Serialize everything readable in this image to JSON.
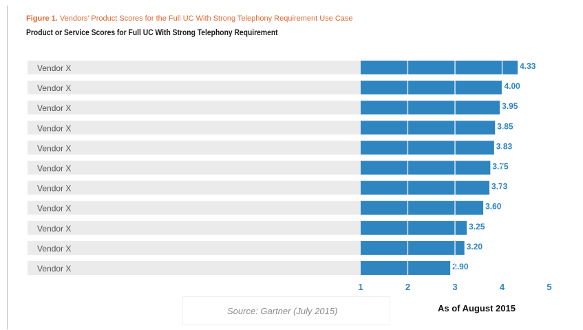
{
  "figure": {
    "label": "Figure 1.",
    "caption": "Vendors' Product Scores for the Full UC With Strong Telephony Requirement Use Case"
  },
  "footer": {
    "source": "Source: Gartner (July 2015)",
    "as_of": "As of August 2015"
  },
  "colors": {
    "bar": "#2e85c0",
    "row_band": "#ebebeb",
    "value_label": "#2e85c0",
    "caption": "#e06a35"
  },
  "chart_data": {
    "type": "bar",
    "orientation": "horizontal",
    "title": "Product or Service Scores for Full UC With Strong Telephony Requirement",
    "categories": [
      "Vendor X",
      "Vendor X",
      "Vendor X",
      "Vendor X",
      "Vendor X",
      "Vendor X",
      "Vendor X",
      "Vendor X",
      "Vendor X",
      "Vendor X",
      "Vendor X"
    ],
    "values": [
      4.33,
      4.0,
      3.95,
      3.85,
      3.83,
      3.75,
      3.73,
      3.6,
      3.25,
      3.2,
      2.9
    ],
    "value_labels": [
      "4.33",
      "4.00",
      "3.95",
      "3.85",
      "3.83",
      "3.75",
      "3.73",
      "3.60",
      "3.25",
      "3.20",
      "2.90"
    ],
    "xlim": [
      1,
      5
    ],
    "xticks": [
      "1",
      "2",
      "3",
      "4",
      "5"
    ],
    "xlabel": "",
    "ylabel": "",
    "grid": true,
    "legend": "none"
  }
}
